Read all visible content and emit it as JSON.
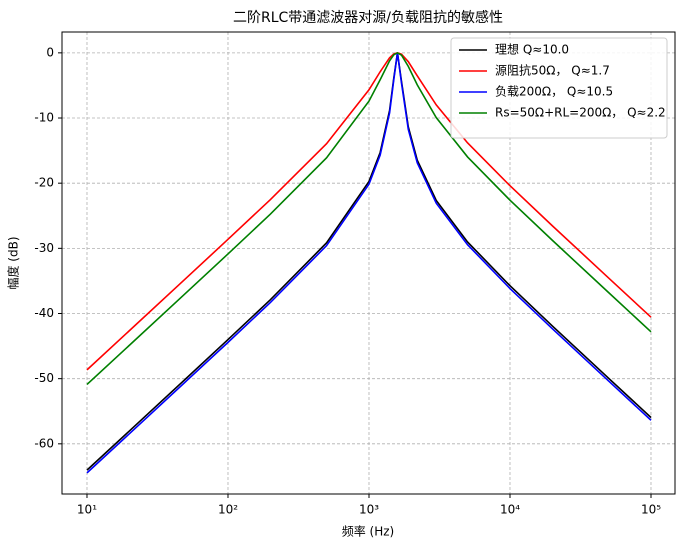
{
  "chart_data": {
    "type": "line",
    "title": "二阶RLC带通滤波器对源/负载阻抗的敏感性",
    "x_label": "频率 (Hz)",
    "y_label": "幅度 (dB)",
    "xscale": "log",
    "grid": true,
    "legend": "upper right",
    "x": [
      10,
      20,
      50,
      100,
      200,
      500,
      1000,
      1200,
      1400,
      1500,
      1592,
      1700,
      1900,
      2200,
      3000,
      5000,
      10000,
      20000,
      50000,
      100000
    ],
    "series": [
      {
        "name": "理想 Q≈10.0",
        "color": "#000000",
        "values": [
          -64.04,
          -58.02,
          -50.05,
          -44.0,
          -37.88,
          -29.16,
          -19.73,
          -15.29,
          -8.83,
          -3.83,
          0,
          -4.35,
          -11.35,
          -16.47,
          -22.65,
          -29.02,
          -35.74,
          -41.93,
          -49.93,
          -55.96
        ]
      },
      {
        "name": "源阻抗50Ω， Q≈1.7",
        "color": "#ff0000",
        "values": [
          -48.65,
          -42.63,
          -34.66,
          -28.62,
          -22.51,
          -13.94,
          -5.67,
          -2.9,
          -0.76,
          -0.18,
          0,
          -0.21,
          -1.35,
          -3.53,
          -7.99,
          -13.81,
          -20.39,
          -26.55,
          -34.54,
          -40.57
        ]
      },
      {
        "name": "负载200Ω， Q≈10.5",
        "color": "#0000ff",
        "values": [
          -64.46,
          -58.44,
          -50.47,
          -44.43,
          -38.3,
          -29.59,
          -20.15,
          -15.7,
          -9.2,
          -4.09,
          0,
          -4.63,
          -11.74,
          -16.88,
          -23.07,
          -29.44,
          -36.17,
          -42.35,
          -50.35,
          -56.38
        ]
      },
      {
        "name": "Rs=50Ω+RL=200Ω， Q≈2.2",
        "color": "#008000",
        "values": [
          -50.89,
          -44.87,
          -36.9,
          -30.86,
          -24.74,
          -16.11,
          -7.4,
          -4.13,
          -1.21,
          -0.29,
          0,
          -0.35,
          -2.07,
          -4.91,
          -9.94,
          -15.97,
          -22.61,
          -28.78,
          -36.78,
          -42.81
        ]
      }
    ],
    "xlim": [
      6.65,
      148000
    ],
    "xticks": [
      {
        "value": 10,
        "label": "10¹"
      },
      {
        "value": 100,
        "label": "10²"
      },
      {
        "value": 1000,
        "label": "10³"
      },
      {
        "value": 10000,
        "label": "10⁴"
      },
      {
        "value": 100000,
        "label": "10⁵"
      }
    ],
    "ylim": [
      -67.7,
      3.2
    ],
    "yticks": [
      0,
      -10,
      -20,
      -30,
      -40,
      -50,
      -60
    ]
  }
}
